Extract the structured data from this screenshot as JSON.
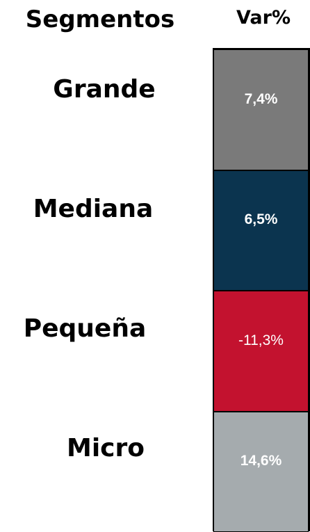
{
  "header": {
    "segment_title": "Segmentos",
    "value_title": "Var%"
  },
  "table": {
    "rows": [
      {
        "segment": "Grande",
        "value": "7,4%",
        "color": "#7a7a7a"
      },
      {
        "segment": "Mediana",
        "value": "6,5%",
        "color": "#0b344f"
      },
      {
        "segment": "Pequeña",
        "value": "-11,3%",
        "color": "#c3122f"
      },
      {
        "segment": "Micro",
        "value": "14,6%",
        "color": "#a5abae"
      }
    ]
  }
}
